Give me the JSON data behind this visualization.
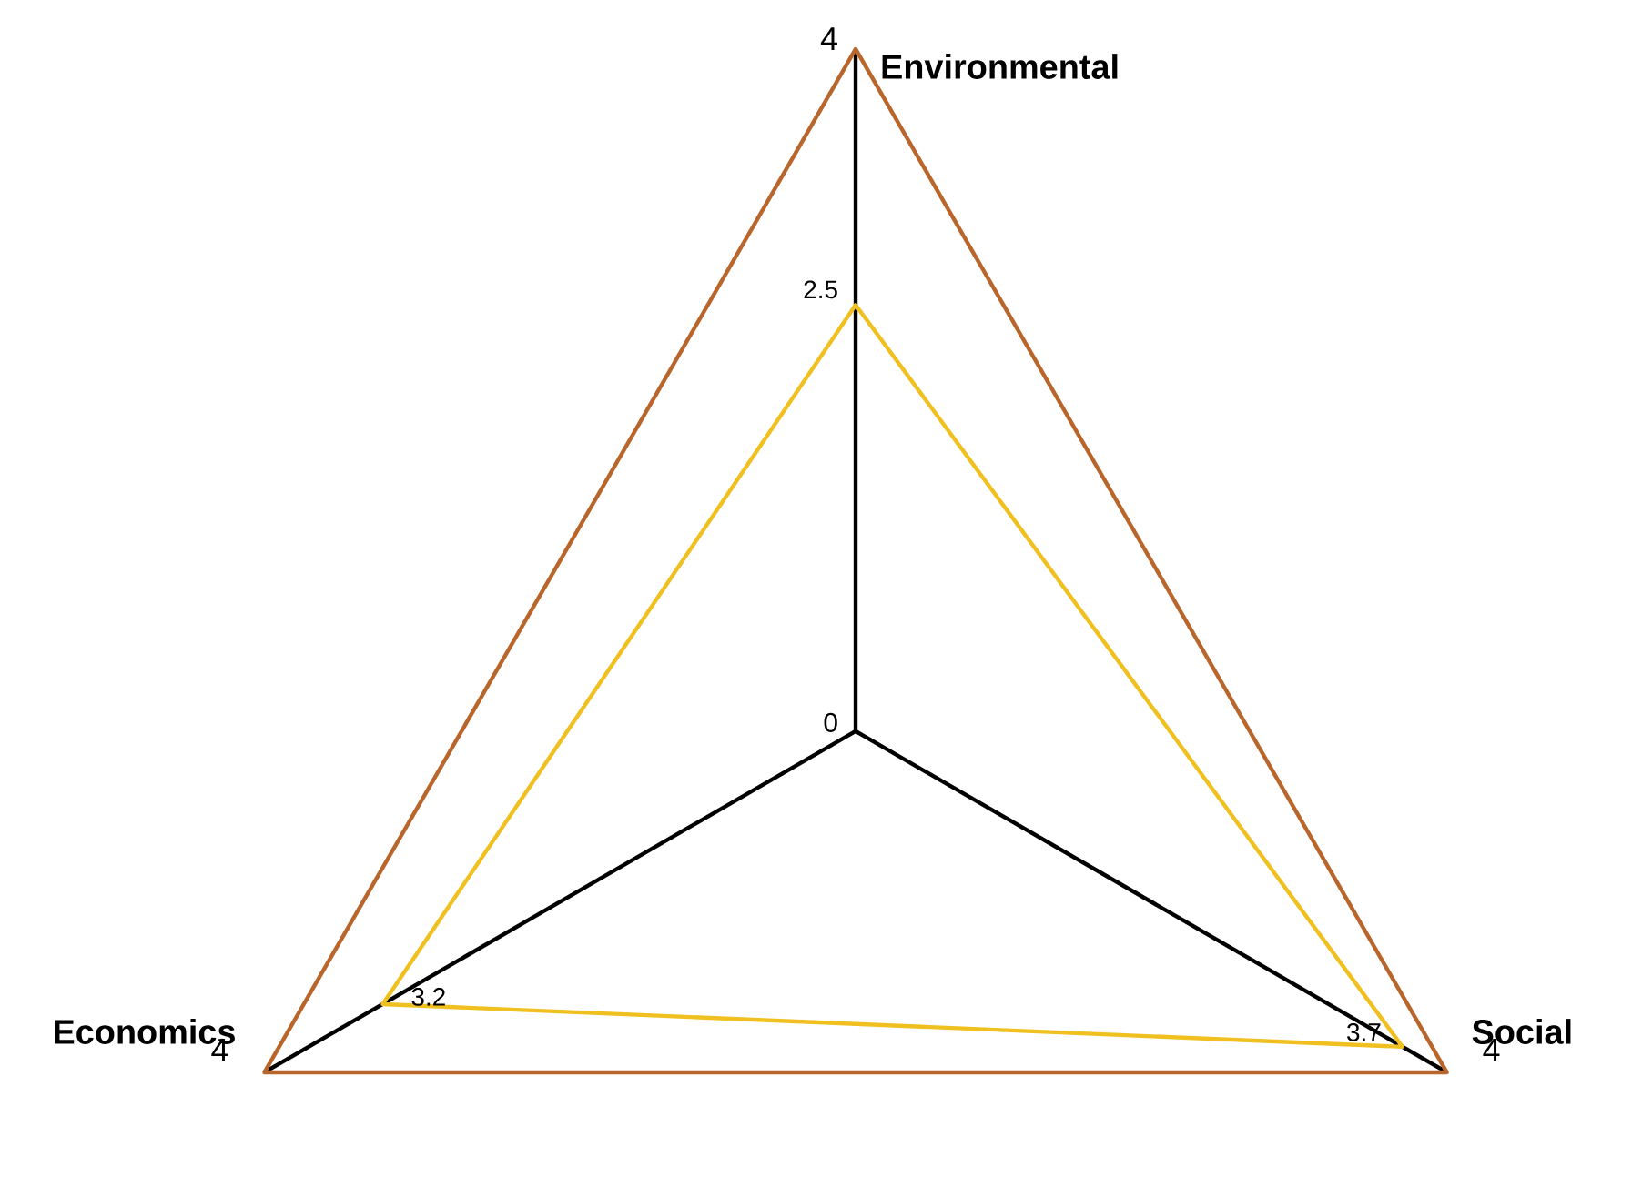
{
  "chart_data": {
    "type": "radar",
    "categories": [
      "Environmental",
      "Social",
      "Economics"
    ],
    "series": [
      {
        "color": "#f0c020",
        "values": [
          2.5,
          3.7,
          3.2
        ],
        "value_labels": [
          "2.5",
          "3.7",
          "3.2"
        ]
      }
    ],
    "ylim": [
      0,
      4
    ],
    "yticks": [
      {
        "value": 0,
        "label": "0"
      },
      {
        "value": 4,
        "label": "4"
      }
    ],
    "grid": true,
    "annotations": [
      "4",
      "4"
    ],
    "marker": "none"
  }
}
